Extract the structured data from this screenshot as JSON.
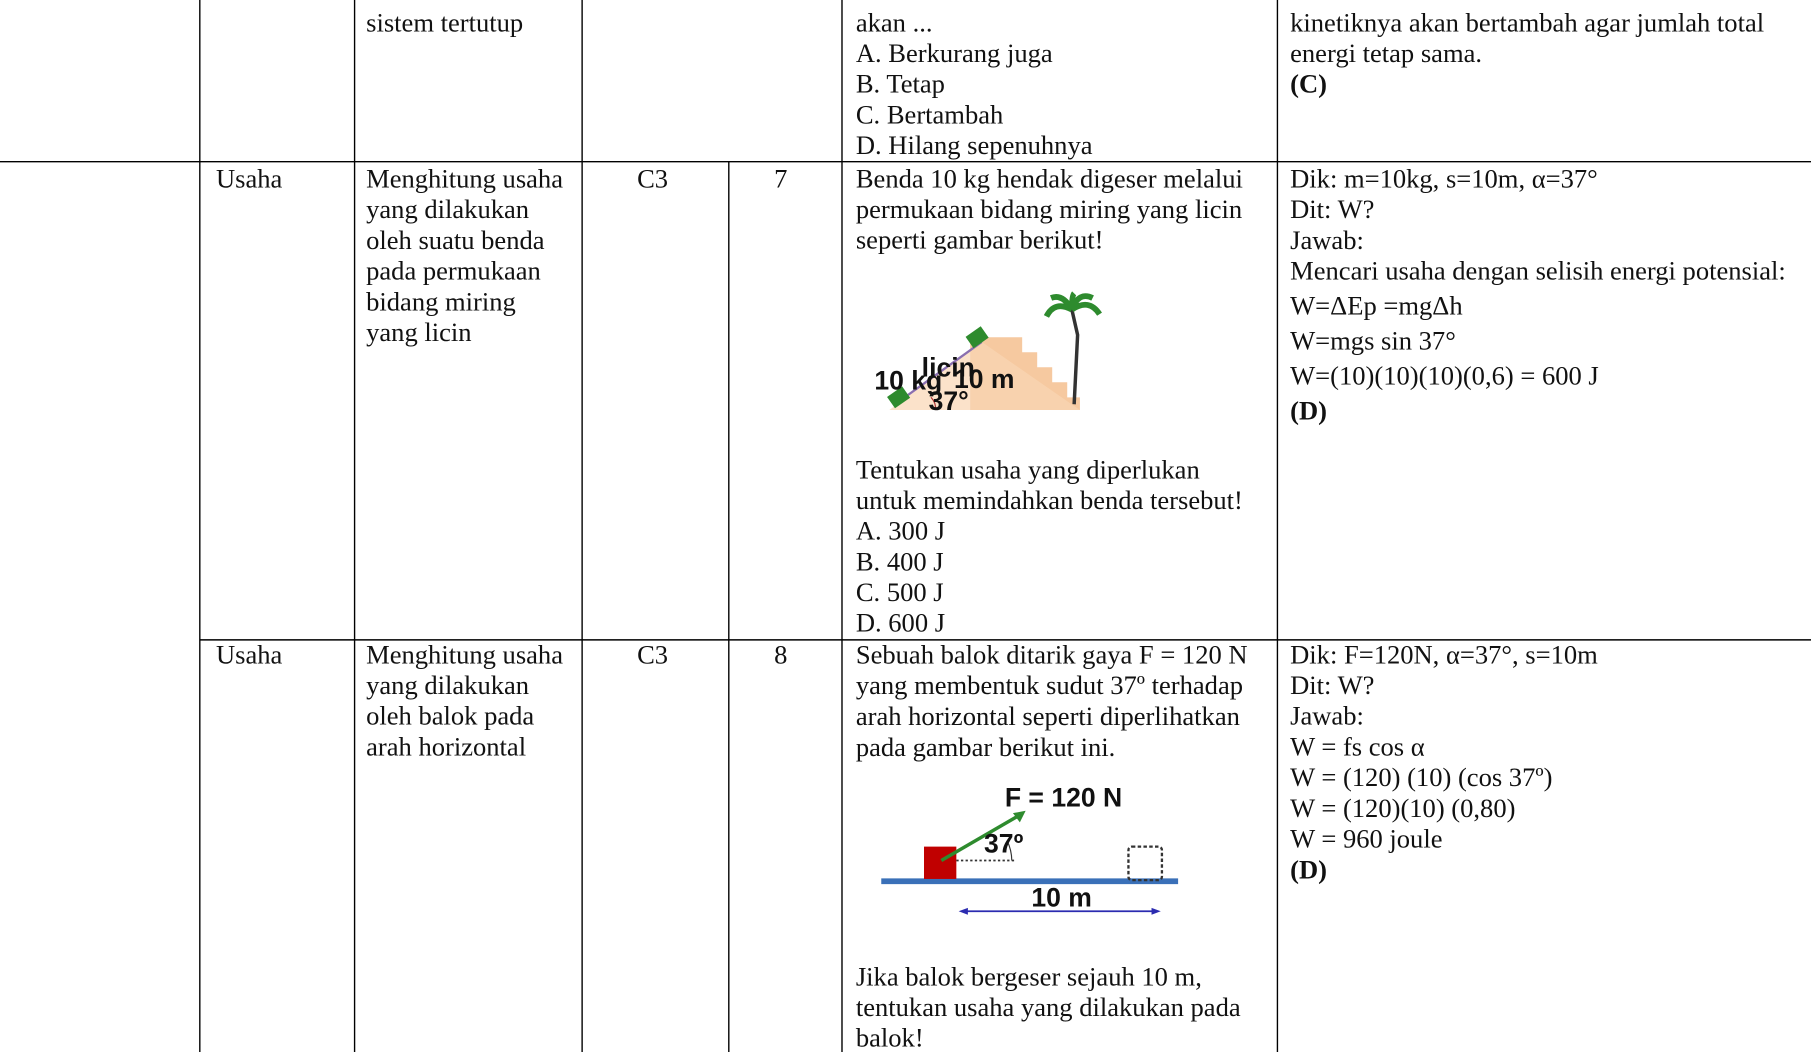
{
  "rows": [
    {
      "objective": [
        "sistem tertutup"
      ],
      "question": [
        "akan ...",
        "A. Berkurang juga",
        "B. Tetap",
        "C. Bertambah",
        "D. Hilang sepenuhnya"
      ],
      "answer": [
        "kinetiknya akan bertambah agar jumlah total",
        "energi tetap sama.",
        "(C)"
      ]
    },
    {
      "topic": "Usaha",
      "objective": [
        "Menghitung usaha",
        "yang dilakukan",
        "oleh suatu benda",
        "pada permukaan",
        "bidang miring",
        "yang licin"
      ],
      "level": "C3",
      "number": "7",
      "question": [
        "Benda 10 kg hendak digeser melalui",
        "permukaan bidang miring yang licin",
        "seperti gambar berikut!"
      ],
      "figure_labels": [
        "10 kg",
        "licin",
        "10 m",
        "37°"
      ],
      "question_after": [
        "Tentukan usaha yang diperlukan",
        "untuk memindahkan benda tersebut!",
        "A. 300 J",
        "B. 400 J",
        "C. 500 J",
        "D. 600 J"
      ],
      "answer": [
        "Dik: m=10kg, s=10m, α=37°",
        "Dit: W?",
        "Jawab:",
        "Mencari usaha dengan selisih energi potensial:",
        "W=ΔEp =mgΔh",
        "W=mgs sin 37°",
        "W=(10)(10)(10)(0,6) = 600 J",
        "(D)"
      ]
    },
    {
      "topic": "Usaha",
      "objective": [
        "Menghitung usaha",
        "yang dilakukan",
        "oleh balok pada",
        "arah horizontal"
      ],
      "level": "C3",
      "number": "8",
      "question": [
        "Sebuah balok ditarik gaya F = 120 N",
        "yang membentuk sudut 37º terhadap",
        "arah horizontal seperti diperlihatkan",
        "pada gambar berikut ini."
      ],
      "figure_labels": [
        "F = 120 N",
        "37º",
        "10 m"
      ],
      "question_after": [
        "Jika balok bergeser sejauh 10 m,",
        "tentukan usaha yang dilakukan pada",
        "balok!"
      ],
      "answer": [
        "Dik: F=120N,  α=37°, s=10m",
        "Dit: W?",
        "Jawab:",
        "W = fs cos α",
        "W = (120) (10) (cos 37º)",
        "W = (120)(10) (0,80)",
        "W = 960 joule",
        "(D)"
      ]
    }
  ]
}
